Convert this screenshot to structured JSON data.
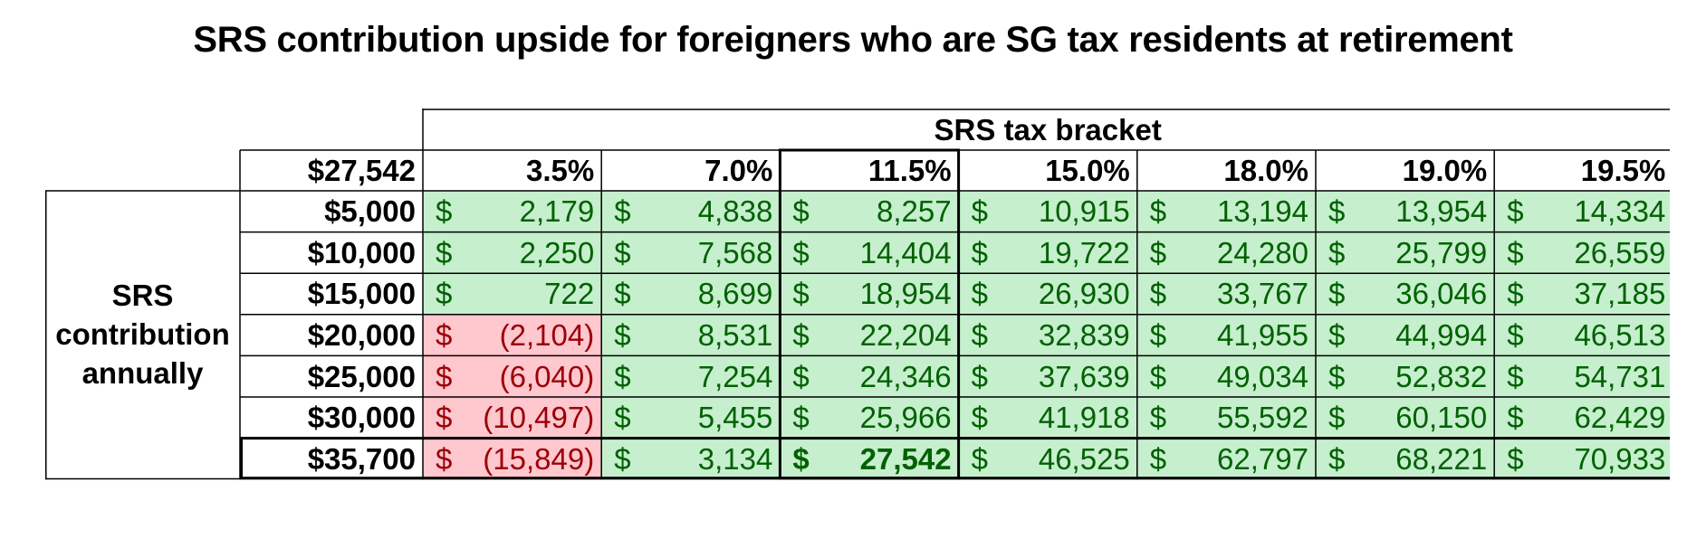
{
  "chart_data": {
    "type": "table",
    "title": "SRS contribution upside for foreigners who are SG tax residents at retirement",
    "column_group_header": "SRS tax bracket",
    "corner_label": "$27,542",
    "row_group_header": [
      "SRS",
      "contribution",
      "annually"
    ],
    "columns": [
      "3.5%",
      "7.0%",
      "11.5%",
      "15.0%",
      "18.0%",
      "19.0%",
      "19.5%"
    ],
    "rows": [
      {
        "label": "$5,000",
        "values": [
          "2,179",
          "4,838",
          "8,257",
          "10,915",
          "13,194",
          "13,954",
          "14,334"
        ]
      },
      {
        "label": "$10,000",
        "values": [
          "2,250",
          "7,568",
          "14,404",
          "19,722",
          "24,280",
          "25,799",
          "26,559"
        ]
      },
      {
        "label": "$15,000",
        "values": [
          "722",
          "8,699",
          "18,954",
          "26,930",
          "33,767",
          "36,046",
          "37,185"
        ]
      },
      {
        "label": "$20,000",
        "values": [
          "(2,104)",
          "8,531",
          "22,204",
          "32,839",
          "41,955",
          "44,994",
          "46,513"
        ]
      },
      {
        "label": "$25,000",
        "values": [
          "(6,040)",
          "7,254",
          "24,346",
          "37,639",
          "49,034",
          "52,832",
          "54,731"
        ]
      },
      {
        "label": "$30,000",
        "values": [
          "(10,497)",
          "5,455",
          "25,966",
          "41,918",
          "55,592",
          "60,150",
          "62,429"
        ]
      },
      {
        "label": "$35,700",
        "values": [
          "(15,849)",
          "3,134",
          "27,542",
          "46,525",
          "62,797",
          "68,221",
          "70,933"
        ]
      }
    ],
    "currency_symbol": "$",
    "highlight": {
      "row": 6,
      "column": 2
    },
    "colors": {
      "positive_fill": "#c6efce",
      "positive_text": "#006100",
      "negative_fill": "#ffc7ce",
      "negative_text": "#9c0006",
      "border": "#000000"
    }
  }
}
